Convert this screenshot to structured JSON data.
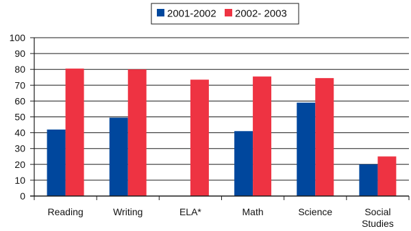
{
  "chart_data": {
    "type": "bar",
    "categories": [
      [
        "Reading"
      ],
      [
        "Writing"
      ],
      [
        "ELA*"
      ],
      [
        "Math"
      ],
      [
        "Science"
      ],
      [
        "Social",
        "Studies"
      ]
    ],
    "series": [
      {
        "name": "2001-2002",
        "color": "#00479d",
        "values": [
          42,
          49.5,
          null,
          41,
          59,
          20
        ]
      },
      {
        "name": "2002- 2003",
        "color": "#ee3342",
        "values": [
          80.5,
          80,
          73.5,
          75.5,
          74.5,
          25
        ]
      }
    ],
    "ylim": [
      0,
      100
    ],
    "yticks": [
      0,
      10,
      20,
      30,
      40,
      50,
      60,
      70,
      80,
      90,
      100
    ],
    "grid": true,
    "legend_position": "top-center",
    "title": "",
    "xlabel": "",
    "ylabel": ""
  }
}
